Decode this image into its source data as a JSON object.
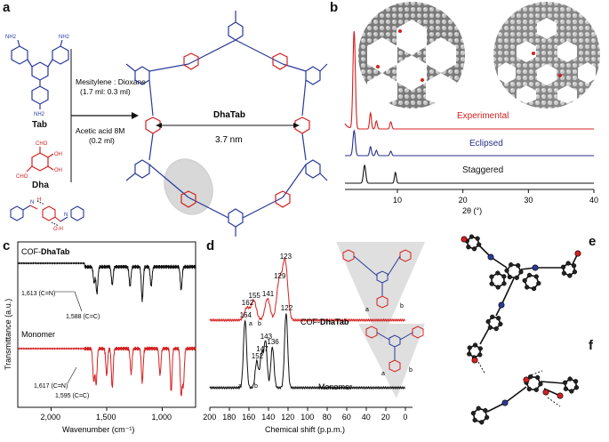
{
  "panel_labels": {
    "a": "a",
    "b": "b",
    "c": "c",
    "d": "d",
    "e": "e",
    "f": "f"
  },
  "panel_a": {
    "reactant1": "Tab",
    "reactant2": "Dha",
    "solvent_line1": "Mesitylene : Dioxane",
    "solvent_line2": "(1.7 ml: 0.3 ml)",
    "acid_line1": "Acetic acid 8M",
    "acid_line2": "(0.2 ml)",
    "product": "DhaTab",
    "pore_size": "3.7 nm",
    "groups": {
      "nh2": "NH2",
      "cho": "CHO",
      "oh": "OH",
      "o_h": "O-H",
      "h": "H",
      "n": "N"
    },
    "colors": {
      "amine": "#2a3a9a",
      "aldehyde": "#d42020"
    }
  },
  "panel_b": {
    "series": [
      "Experimental",
      "Eclipsed",
      "Staggered"
    ],
    "xlabel": "2θ (°)",
    "xticks": [
      "10",
      "20",
      "30",
      "40"
    ],
    "colors": {
      "experimental": "#d42020",
      "eclipsed": "#2a2f8c",
      "staggered": "#111111"
    }
  },
  "panel_c": {
    "ylabel": "Transmittance (a.u.)",
    "xlabel": "Wavenumber (cm⁻¹)",
    "xticks": [
      "2,000",
      "1,500",
      "1,000"
    ],
    "top_label_prefix": "COF-",
    "top_label_bold": "DhaTab",
    "bottom_label": "Monomer",
    "ann_cof_cn": "1,613 (C=N)",
    "ann_cof_cc": "1,588 (C=C)",
    "ann_mon_cn": "1,617 (C=N)",
    "ann_mon_cc": "1,595 (C=C)"
  },
  "panel_d": {
    "xlabel": "Chemical shift (p.p.m.)",
    "xticks": [
      "200",
      "180",
      "160",
      "140",
      "120",
      "100",
      "80",
      "60",
      "40",
      "20",
      "0"
    ],
    "top_label_prefix": "COF-",
    "top_label_bold": "DhaTab",
    "bottom_label": "Monomer",
    "cof_peaks": [
      "162",
      "155",
      "141",
      "129",
      "123"
    ],
    "mon_peaks": [
      "164",
      "152",
      "147",
      "143",
      "136",
      "122"
    ],
    "site_labels": {
      "a": "a",
      "b": "b"
    }
  },
  "chart_data": [
    {
      "type": "line",
      "panel": "b",
      "xlabel": "2θ (°)",
      "xlim": [
        2,
        40
      ],
      "series": [
        {
          "name": "Experimental",
          "peaks_x": [
            3.4,
            5.9,
            6.8,
            9.0
          ]
        },
        {
          "name": "Eclipsed",
          "peaks_x": [
            3.4,
            5.9,
            6.8,
            9.0
          ]
        },
        {
          "name": "Staggered",
          "peaks_x": [
            5.0,
            9.7
          ]
        }
      ]
    },
    {
      "type": "line",
      "panel": "c",
      "xlabel": "Wavenumber (cm⁻¹)",
      "ylabel": "Transmittance (a.u.)",
      "xlim": [
        2300,
        700
      ],
      "series": [
        {
          "name": "COF-DhaTab",
          "bands": [
            1613,
            1588,
            1450,
            1290,
            1180,
            1100,
            830
          ]
        },
        {
          "name": "Monomer",
          "bands": [
            1617,
            1595,
            1500,
            1450,
            1280,
            1180,
            1020,
            920,
            830,
            810
          ]
        }
      ]
    },
    {
      "type": "line",
      "panel": "d",
      "xlabel": "Chemical shift (p.p.m.)",
      "xlim": [
        200,
        0
      ],
      "series": [
        {
          "name": "COF-DhaTab",
          "peaks": [
            162,
            155,
            141,
            129,
            123
          ]
        },
        {
          "name": "Monomer",
          "peaks": [
            164,
            152,
            147,
            143,
            136,
            122
          ]
        }
      ]
    }
  ]
}
